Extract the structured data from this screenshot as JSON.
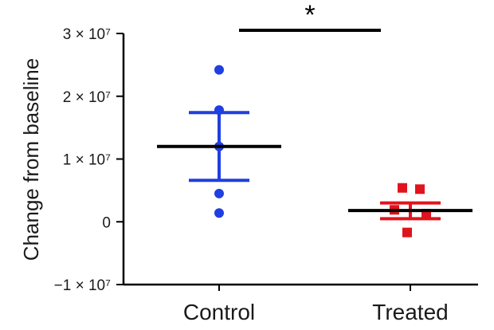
{
  "chart_data": {
    "type": "scatter",
    "ylabel": "Change from baseline",
    "xlabel": "",
    "categories": [
      "Control",
      "Treated"
    ],
    "ylim": [
      -10000000,
      30000000
    ],
    "yticks": [
      {
        "value": 30000000,
        "label": "3 × 10⁷"
      },
      {
        "value": 20000000,
        "label": "2 × 10⁷"
      },
      {
        "value": 10000000,
        "label": "1 × 10⁷"
      },
      {
        "value": 0,
        "label": "0"
      },
      {
        "value": -10000000,
        "label": "−1 × 10⁷"
      }
    ],
    "grid": false,
    "series": [
      {
        "category": "Control",
        "marker": "circle",
        "color": "#1f3fe0",
        "points": [
          24200000,
          17800000,
          12000000,
          4500000,
          1400000
        ],
        "mean": 12000000,
        "error_low": 6600000,
        "error_high": 17400000
      },
      {
        "category": "Treated",
        "marker": "square",
        "color": "#e0141e",
        "points": [
          5400000,
          5200000,
          1900000,
          1300000,
          -1700000
        ],
        "mean": 1800000,
        "error_low": 500000,
        "error_high": 3000000
      }
    ],
    "significance": {
      "label": "*",
      "between": [
        "Control",
        "Treated"
      ]
    }
  }
}
